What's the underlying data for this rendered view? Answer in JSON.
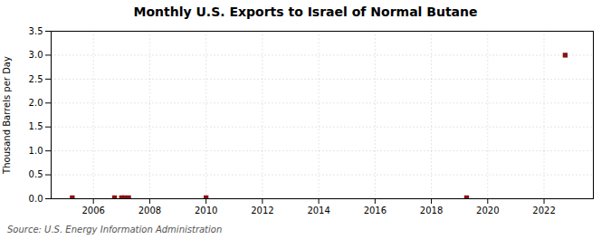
{
  "chart_data": {
    "type": "scatter",
    "title": "Monthly U.S. Exports to Israel of Normal Butane",
    "ylabel": "Thousand Barrels per Day",
    "source": "Source: U.S. Energy Information Administration",
    "x": [
      2005.25,
      2006.75,
      2007.0,
      2007.1,
      2007.25,
      2010.0,
      2019.25,
      2022.75
    ],
    "values": [
      0.02,
      0.02,
      0.02,
      0.02,
      0.02,
      0.02,
      0.02,
      3.0
    ],
    "color": "#8b1010",
    "marker": "square",
    "xlim": [
      2004.5,
      2023.75
    ],
    "xticks": [
      2006,
      2008,
      2010,
      2012,
      2014,
      2016,
      2018,
      2020,
      2022
    ],
    "ylim": [
      0.0,
      3.5
    ],
    "yticks": [
      {
        "value": 0.0,
        "label": "0.0"
      },
      {
        "value": 0.5,
        "label": "0.5"
      },
      {
        "value": 1.0,
        "label": "1.0"
      },
      {
        "value": 1.5,
        "label": "1.5"
      },
      {
        "value": 2.0,
        "label": "2.0"
      },
      {
        "value": 2.5,
        "label": "2.5"
      },
      {
        "value": 3.0,
        "label": "3.0"
      },
      {
        "value": 3.5,
        "label": "3.5"
      }
    ],
    "grid": true
  }
}
